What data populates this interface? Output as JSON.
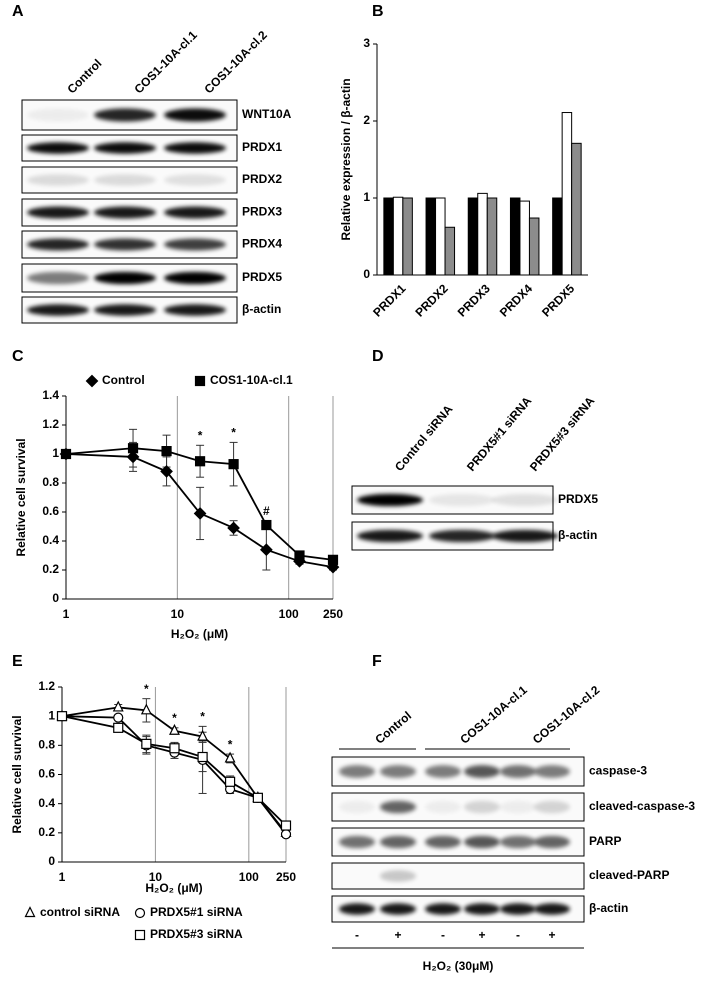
{
  "chart_data": [
    {
      "type": "bar",
      "panel": "B",
      "ylabel": "Relative expression / β-actin",
      "categories": [
        "PRDX1",
        "PRDX2",
        "PRDX3",
        "PRDX4",
        "PRDX5"
      ],
      "series": [
        {
          "color": "#000000",
          "values": [
            1,
            1,
            1,
            1,
            1
          ]
        },
        {
          "color": "#ffffff",
          "values": [
            1.01,
            1,
            1.06,
            0.96,
            2.11
          ]
        },
        {
          "color": "#8c8c8c",
          "values": [
            1.0,
            0.62,
            1.0,
            0.74,
            1.71
          ]
        }
      ],
      "ylim": [
        0,
        3
      ],
      "yticks": [
        0,
        1,
        2,
        3
      ]
    },
    {
      "type": "line",
      "panel": "C",
      "xlabel": "H₂O₂ (μM)",
      "ylabel": "Relative cell survival",
      "xscale": "log",
      "grid": true,
      "legend": "top",
      "x": [
        1,
        4,
        8,
        16,
        32,
        63,
        125,
        250
      ],
      "series": [
        {
          "name": "Control",
          "color": "#000000",
          "marker": "diamond",
          "filled": true,
          "values": [
            1,
            0.98,
            0.88,
            0.59,
            0.49,
            0.34,
            0.26,
            0.22
          ],
          "errors": [
            0,
            0.1,
            0.1,
            0.18,
            0.05,
            0.14,
            0.02,
            0.02
          ]
        },
        {
          "name": "COS1-10A-cl.1",
          "color": "#000000",
          "marker": "square",
          "filled": true,
          "values": [
            1,
            1.04,
            1.02,
            0.95,
            0.93,
            0.51,
            0.3,
            0.27
          ],
          "errors": [
            0,
            0.13,
            0.11,
            0.11,
            0.15,
            0.03,
            0.02,
            0.02
          ]
        }
      ],
      "annotations": [
        {
          "text": "*",
          "x": 16
        },
        {
          "text": "*",
          "x": 32
        },
        {
          "text": "#",
          "x": 63
        }
      ],
      "xlim": [
        1,
        250
      ],
      "xticks": [
        1,
        10,
        100,
        250
      ],
      "ylim": [
        0,
        1.4
      ],
      "yticks": [
        0,
        0.2,
        0.4,
        0.6,
        0.8,
        1,
        1.2,
        1.4
      ]
    },
    {
      "type": "line",
      "panel": "E",
      "xlabel": "H₂O₂ (μM)",
      "ylabel": "Relative cell survival",
      "xscale": "log",
      "grid": true,
      "legend": "bottom",
      "x": [
        1,
        4,
        8,
        16,
        32,
        63,
        125,
        250
      ],
      "series": [
        {
          "name": "control siRNA",
          "color": "#000000",
          "marker": "triangle",
          "filled": false,
          "values": [
            1,
            1.06,
            1.04,
            0.9,
            0.86,
            0.71,
            0.44,
            0.2
          ],
          "errors": [
            0,
            0.02,
            0.08,
            0.02,
            0.03,
            0.03,
            0.01,
            0.02
          ]
        },
        {
          "name": "PRDX5#1 siRNA",
          "color": "#000000",
          "marker": "circle",
          "filled": false,
          "values": [
            1,
            0.99,
            0.8,
            0.75,
            0.7,
            0.5,
            0.44,
            0.19
          ],
          "errors": [
            0,
            0.01,
            0.06,
            0.04,
            0.23,
            0.03,
            0.01,
            0.02
          ]
        },
        {
          "name": "PRDX5#3 siRNA",
          "color": "#000000",
          "marker": "square",
          "filled": false,
          "values": [
            1,
            0.92,
            0.81,
            0.78,
            0.72,
            0.55,
            0.44,
            0.25
          ],
          "errors": [
            0,
            0.02,
            0.06,
            0.04,
            0.1,
            0.04,
            0.01,
            0.02
          ]
        }
      ],
      "annotations": [
        {
          "text": "*",
          "x": 8
        },
        {
          "text": "*",
          "x": 16
        },
        {
          "text": "*",
          "x": 32
        },
        {
          "text": "*",
          "x": 63
        }
      ],
      "xlim": [
        1,
        250
      ],
      "xticks": [
        1,
        10,
        100,
        250
      ],
      "ylim": [
        0,
        1.2
      ],
      "yticks": [
        0,
        0.2,
        0.4,
        0.6,
        0.8,
        1,
        1.2
      ]
    }
  ],
  "panel_a": {
    "label": "A",
    "columns": [
      "Control",
      "COS1-10A-cl.1",
      "COS1-10A-cl.2"
    ],
    "rows": [
      "WNT10A",
      "PRDX1",
      "PRDX2",
      "PRDX3",
      "PRDX4",
      "PRDX5",
      "β-actin"
    ]
  },
  "panel_d": {
    "label": "D",
    "columns": [
      "Control siRNA",
      "PRDX5#1 siRNA",
      "PRDX5#3 siRNA"
    ],
    "rows": [
      "PRDX5",
      "β-actin"
    ]
  },
  "panel_f": {
    "label": "F",
    "groups": [
      "Control",
      "COS1-10A-cl.1",
      "COS1-10A-cl.2"
    ],
    "rows": [
      "caspase-3",
      "cleaved-caspase-3",
      "PARP",
      "cleaved-PARP",
      "β-actin"
    ],
    "lanes": [
      "-",
      "+",
      "-",
      "+",
      "-",
      "+"
    ],
    "treatment": "H₂O₂ (30μM)"
  }
}
